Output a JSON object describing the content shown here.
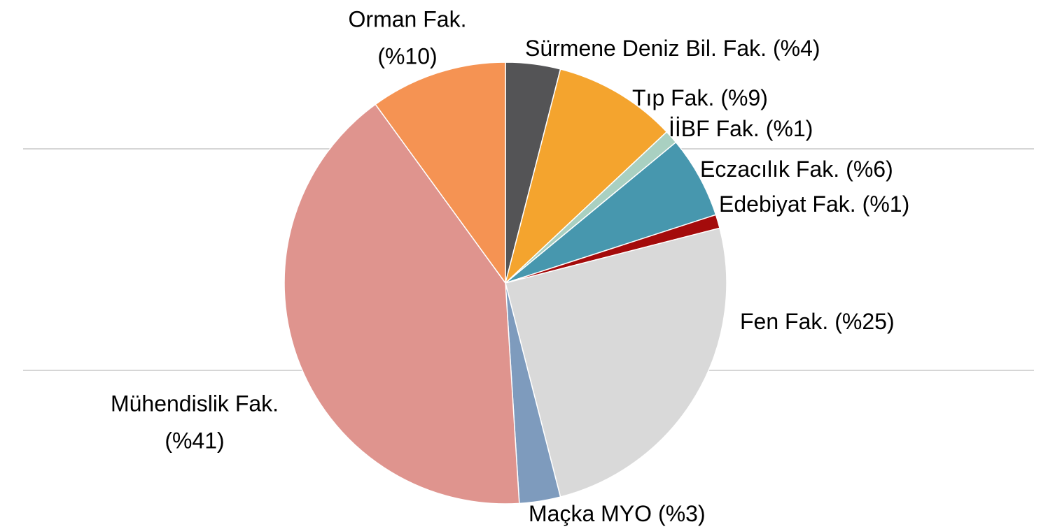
{
  "chart_data": {
    "type": "pie",
    "categories": [
      "Sürmene Deniz Bil. Fak.",
      "Tıp Fak.",
      "İİBF Fak.",
      "Eczacılık Fak.",
      "Edebiyat Fak.",
      "Fen Fak.",
      "Maçka MYO",
      "Mühendislik Fak.",
      "Orman Fak."
    ],
    "values": [
      4,
      9,
      1,
      6,
      1,
      25,
      3,
      41,
      10
    ],
    "value_labels": [
      "(%4)",
      "(%9)",
      "(%1)",
      "(%6)",
      "(%1)",
      "(%25)",
      "(%3)",
      "(%41)",
      "(%10)"
    ],
    "colors": [
      "#545456",
      "#f4a42e",
      "#a9d0c1",
      "#4797ae",
      "#a40b0b",
      "#d9d9d9",
      "#7e9bbd",
      "#df948e",
      "#f59353"
    ]
  }
}
